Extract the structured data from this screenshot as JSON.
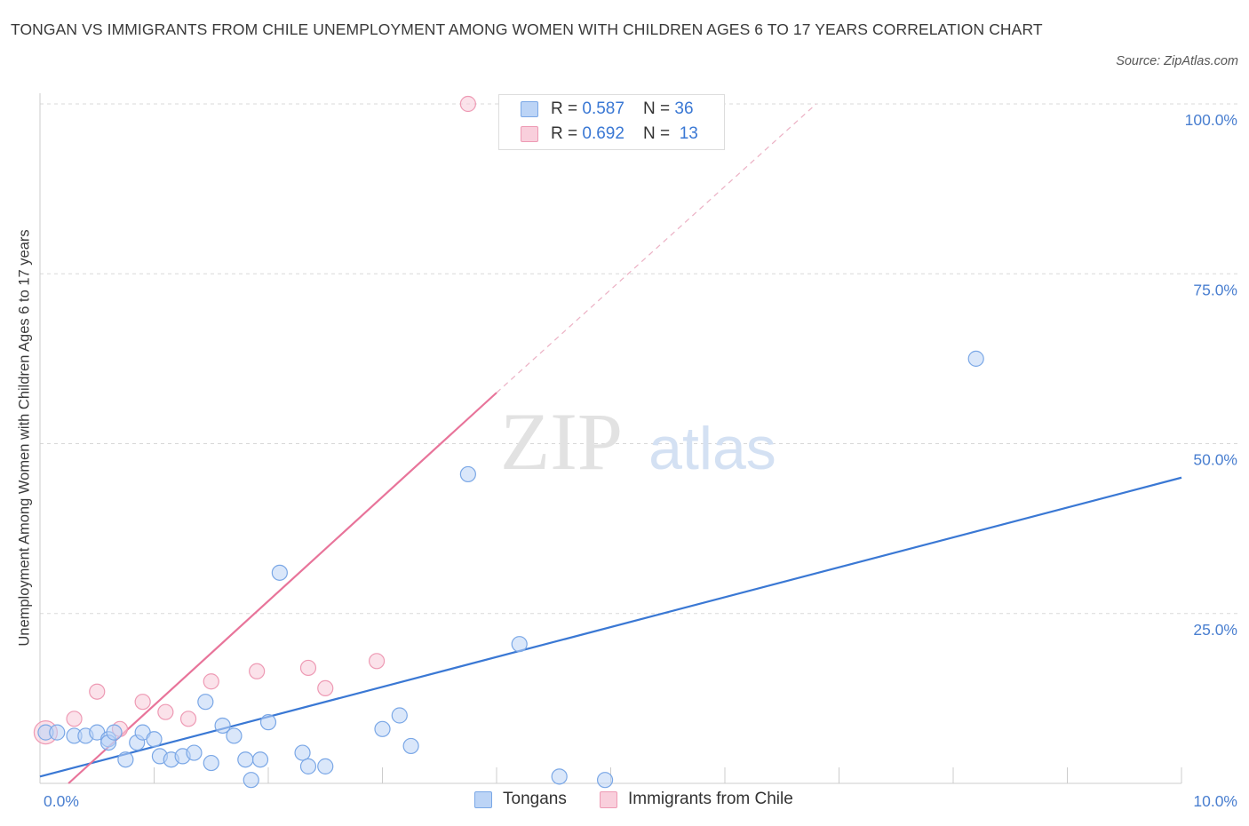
{
  "title": "TONGAN VS IMMIGRANTS FROM CHILE UNEMPLOYMENT AMONG WOMEN WITH CHILDREN AGES 6 TO 17 YEARS CORRELATION CHART",
  "source": "Source: ZipAtlas.com",
  "watermark": {
    "zip": "ZIP",
    "atlas": "atlas"
  },
  "legend": {
    "r_label": "R = ",
    "n_label": "N = ",
    "tongans": {
      "r": "0.587",
      "n": "36"
    },
    "chile": {
      "r": "0.692",
      "n": "13"
    }
  },
  "bottom_legend": {
    "tongans": "Tongans",
    "chile": "Immigrants from Chile"
  },
  "colors": {
    "tongans_fill": "#bcd4f6",
    "tongans_stroke": "#7aa7e6",
    "tongans_line": "#3a78d4",
    "chile_fill": "#f9cfdc",
    "chile_stroke": "#ee9ab4",
    "chile_line": "#e8749a",
    "tick_text": "#4a7fd0",
    "grid": "#d8d8d8"
  },
  "chart_data": {
    "type": "scatter",
    "title": "TONGAN VS IMMIGRANTS FROM CHILE UNEMPLOYMENT AMONG WOMEN WITH CHILDREN AGES 6 TO 17 YEARS CORRELATION CHART",
    "xlabel": "",
    "ylabel": "Unemployment Among Women with Children Ages 6 to 17 years",
    "xlim": [
      0,
      10
    ],
    "ylim": [
      0,
      100
    ],
    "x_tick_labels": [
      "0.0%",
      "10.0%"
    ],
    "y_tick_labels": [
      "100.0%",
      "75.0%",
      "50.0%",
      "25.0%"
    ],
    "y_tick_values": [
      100,
      75,
      50,
      25
    ],
    "grid": true,
    "legend_position": "top-center",
    "series": [
      {
        "name": "Tongans",
        "r": 0.587,
        "n": 36,
        "points": [
          [
            0.05,
            7.5
          ],
          [
            0.15,
            7.5
          ],
          [
            0.3,
            7.0
          ],
          [
            0.4,
            7.0
          ],
          [
            0.5,
            7.5
          ],
          [
            0.6,
            6.5
          ],
          [
            0.6,
            6.0
          ],
          [
            0.65,
            7.5
          ],
          [
            0.75,
            3.5
          ],
          [
            0.85,
            6.0
          ],
          [
            0.9,
            7.5
          ],
          [
            1.0,
            6.5
          ],
          [
            1.05,
            4.0
          ],
          [
            1.15,
            3.5
          ],
          [
            1.25,
            4.0
          ],
          [
            1.35,
            4.5
          ],
          [
            1.45,
            12.0
          ],
          [
            1.5,
            3.0
          ],
          [
            1.6,
            8.5
          ],
          [
            1.7,
            7.0
          ],
          [
            1.8,
            3.5
          ],
          [
            1.85,
            0.5
          ],
          [
            1.93,
            3.5
          ],
          [
            2.0,
            9.0
          ],
          [
            2.1,
            31.0
          ],
          [
            2.3,
            4.5
          ],
          [
            2.35,
            2.5
          ],
          [
            2.5,
            2.5
          ],
          [
            3.0,
            8.0
          ],
          [
            3.15,
            10.0
          ],
          [
            3.25,
            5.5
          ],
          [
            3.75,
            45.5
          ],
          [
            4.2,
            20.5
          ],
          [
            4.55,
            1.0
          ],
          [
            4.95,
            0.5
          ],
          [
            8.2,
            62.5
          ]
        ],
        "trend": {
          "x": [
            0,
            10
          ],
          "y": [
            1.0,
            45.0
          ]
        }
      },
      {
        "name": "Immigrants from Chile",
        "r": 0.692,
        "n": 13,
        "points": [
          [
            0.05,
            7.5
          ],
          [
            0.3,
            9.5
          ],
          [
            0.5,
            13.5
          ],
          [
            0.7,
            8.0
          ],
          [
            0.9,
            12.0
          ],
          [
            1.1,
            10.5
          ],
          [
            1.3,
            9.5
          ],
          [
            1.5,
            15.0
          ],
          [
            1.9,
            16.5
          ],
          [
            2.35,
            17.0
          ],
          [
            2.5,
            14.0
          ],
          [
            2.95,
            18.0
          ],
          [
            3.75,
            100.0
          ]
        ],
        "trend": {
          "x": [
            0.25,
            4.0
          ],
          "y": [
            0.0,
            57.5
          ]
        },
        "trend_extension": {
          "x": [
            4.0,
            6.8
          ],
          "y": [
            57.5,
            100.0
          ]
        }
      }
    ]
  }
}
